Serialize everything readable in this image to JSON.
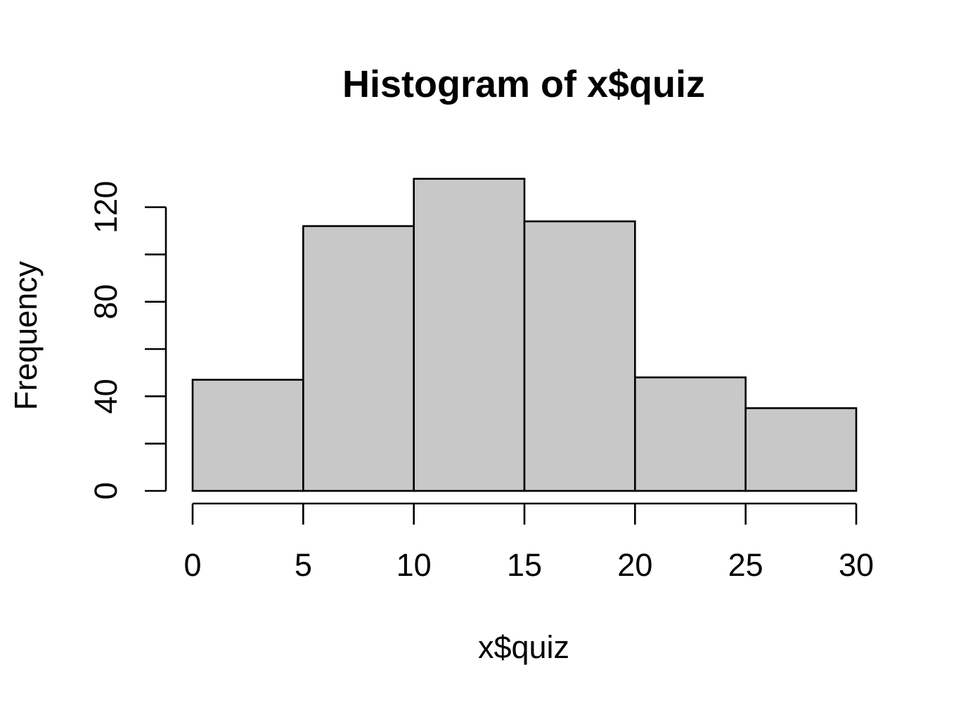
{
  "chart_data": {
    "type": "bar",
    "title": "Histogram of x$quiz",
    "xlabel": "x$quiz",
    "ylabel": "Frequency",
    "bins": [
      {
        "from": 0,
        "to": 5,
        "count": 47
      },
      {
        "from": 5,
        "to": 10,
        "count": 112
      },
      {
        "from": 10,
        "to": 15,
        "count": 132
      },
      {
        "from": 15,
        "to": 20,
        "count": 114
      },
      {
        "from": 20,
        "to": 25,
        "count": 48
      },
      {
        "from": 25,
        "to": 30,
        "count": 35
      }
    ],
    "xlim": [
      0,
      30
    ],
    "ylim": [
      0,
      132
    ],
    "x_ticks": [
      "0",
      "5",
      "10",
      "15",
      "20",
      "25",
      "30"
    ],
    "y_ticks_minor": [
      0,
      20,
      40,
      60,
      80,
      100,
      120
    ],
    "y_tick_labels": [
      "0",
      "40",
      "80",
      "120"
    ],
    "bar_color": "#c8c8c8",
    "grid": false,
    "legend": "none"
  }
}
